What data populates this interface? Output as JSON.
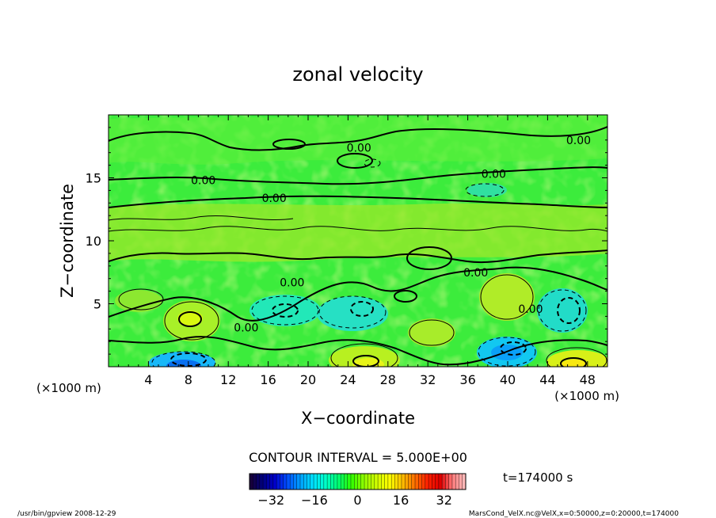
{
  "chart_data": {
    "type": "heatmap",
    "title": "zonal velocity",
    "xlabel": "X−coordinate",
    "ylabel": "Z−coordinate",
    "x_unit_left": "(×1000 m)",
    "x_unit_right": "(×1000 m)",
    "xlim": [
      0,
      50
    ],
    "ylim": [
      0,
      20
    ],
    "x_ticks": [
      4,
      8,
      12,
      16,
      20,
      24,
      28,
      32,
      36,
      40,
      44,
      48
    ],
    "y_ticks": [
      5,
      10,
      15
    ],
    "contour_interval_text": "CONTOUR INTERVAL = 5.000E+00",
    "contour_labels": [
      {
        "text": "0.00",
        "x": 25.1,
        "z": 17.4
      },
      {
        "text": "0.00",
        "x": 47.1,
        "z": 18.0
      },
      {
        "text": "0.00",
        "x": 9.5,
        "z": 14.8
      },
      {
        "text": "0.00",
        "x": 16.6,
        "z": 13.4
      },
      {
        "text": "0.00",
        "x": 38.6,
        "z": 15.3
      },
      {
        "text": "0.00",
        "x": 18.4,
        "z": 6.7
      },
      {
        "text": "0.00",
        "x": 36.8,
        "z": 7.5
      },
      {
        "text": "0.00",
        "x": 13.8,
        "z": 3.1
      },
      {
        "text": "0.00",
        "x": 42.3,
        "z": 4.6
      }
    ],
    "colorbar": {
      "range": [
        -40,
        40
      ],
      "tick_values": [
        -32,
        -16,
        0,
        16,
        32
      ],
      "tick_labels": [
        "−32",
        "−16",
        "0",
        "16",
        "32"
      ],
      "colors": [
        "#1a0033",
        "#00007a",
        "#0000cc",
        "#0050ff",
        "#00a0ff",
        "#00e0ff",
        "#00ffc8",
        "#00ff70",
        "#30ff00",
        "#90ff00",
        "#d0ff00",
        "#ffff00",
        "#ffc000",
        "#ff7000",
        "#ff2000",
        "#e00000",
        "#ff8080",
        "#ffc0c0"
      ]
    },
    "background_color": "#3cec3c",
    "time_label": "t=174000 s"
  },
  "footer": {
    "left": "/usr/bin/gpview   2008-12-29",
    "right": "MarsCond_VelX.nc@VelX,x=0:50000,z=0:20000,t=174000"
  }
}
